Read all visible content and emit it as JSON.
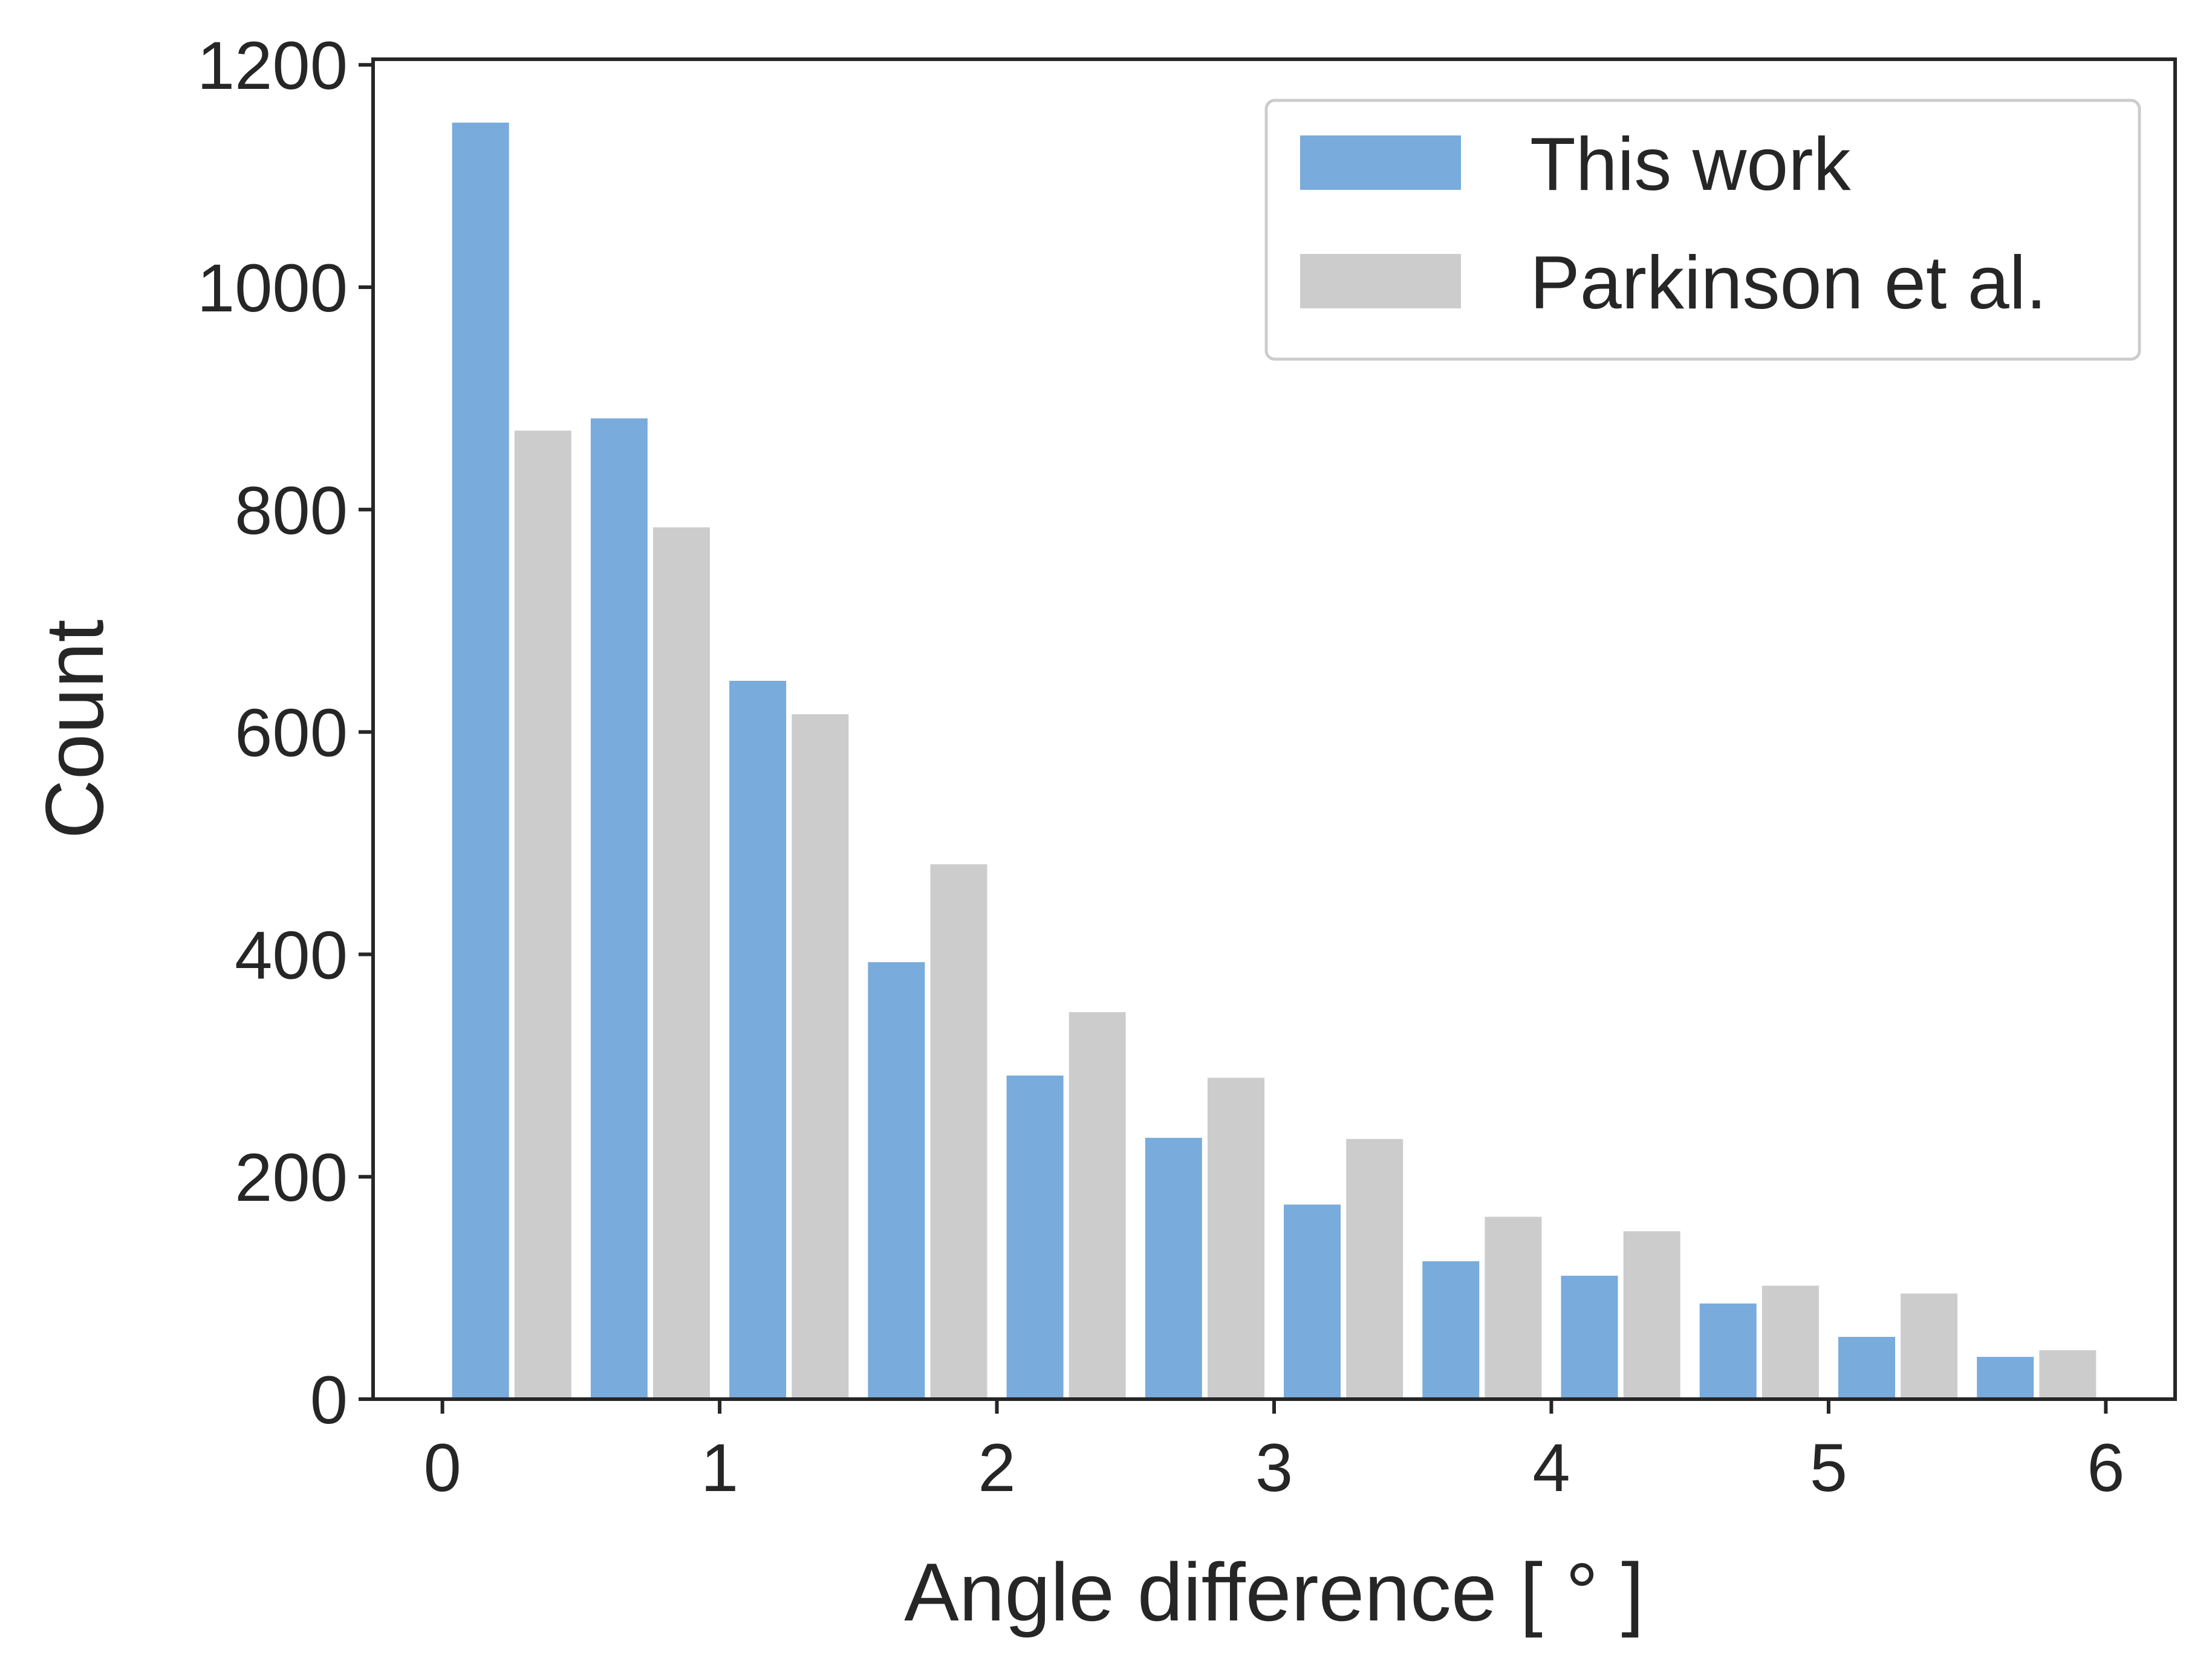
{
  "chart_data": {
    "type": "bar",
    "xlabel": "Angle difference [$^\\circ$]",
    "xlabel_display": "Angle difference [ ° ]",
    "ylabel": "Count",
    "xlim": [
      -0.25,
      6.25
    ],
    "ylim": [
      0,
      1205
    ],
    "xticks": [
      0,
      1,
      2,
      3,
      4,
      5,
      6
    ],
    "yticks": [
      0,
      200,
      400,
      600,
      800,
      1000,
      1200
    ],
    "grid": false,
    "legend_position": "top-right",
    "bin_edges": [
      0,
      0.5,
      1.0,
      1.5,
      2.0,
      2.5,
      3.0,
      3.5,
      4.0,
      4.5,
      5.0,
      5.5,
      6.0
    ],
    "series": [
      {
        "name": "This work",
        "color": "#79abdc",
        "values": [
          1148,
          882,
          646,
          393,
          291,
          235,
          175,
          124,
          111,
          86,
          56,
          38
        ]
      },
      {
        "name": "Parkinson et al.",
        "color": "#cccccc",
        "values": [
          871,
          784,
          616,
          481,
          348,
          289,
          234,
          164,
          151,
          102,
          95,
          44
        ]
      }
    ]
  }
}
